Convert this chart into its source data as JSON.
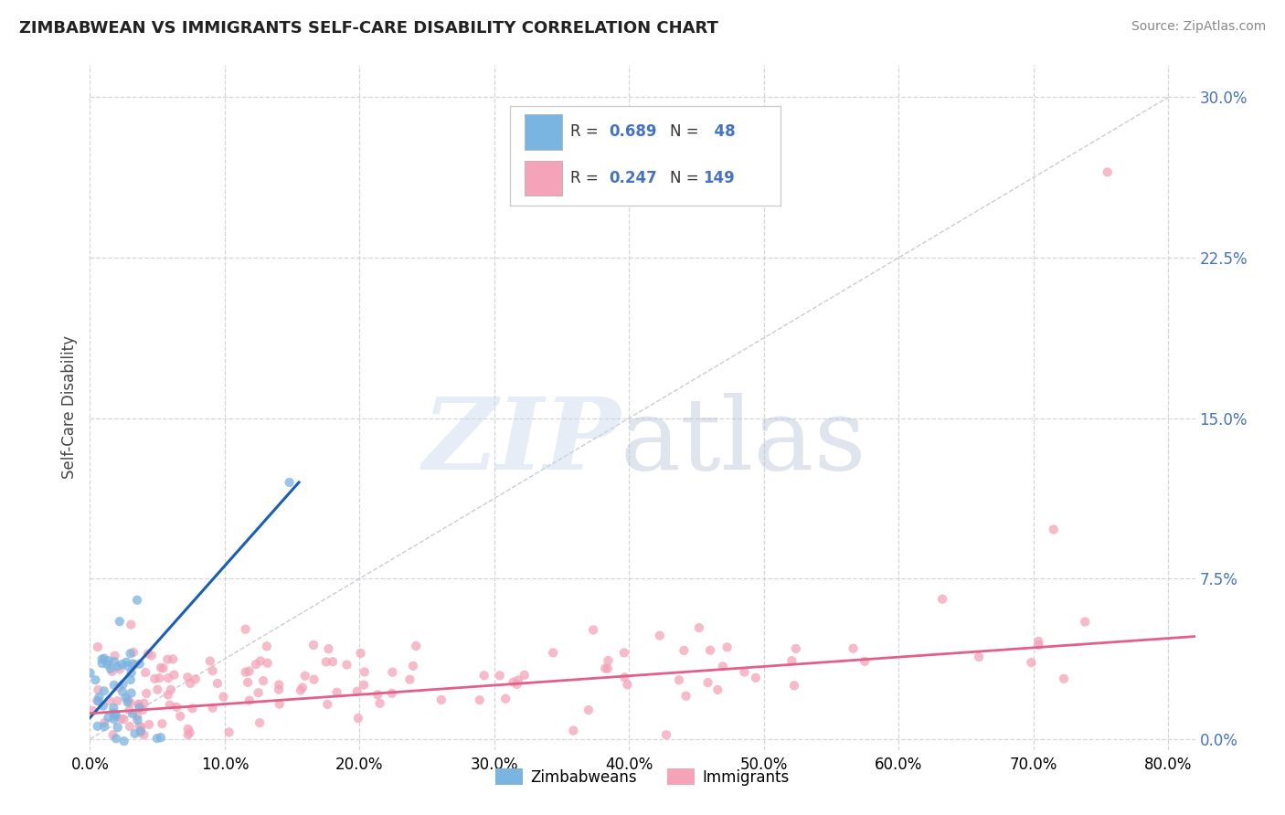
{
  "title": "ZIMBABWEAN VS IMMIGRANTS SELF-CARE DISABILITY CORRELATION CHART",
  "source_text": "Source: ZipAtlas.com",
  "ylabel": "Self-Care Disability",
  "xlim": [
    0.0,
    0.82
  ],
  "ylim": [
    -0.005,
    0.315
  ],
  "zim_color": "#7ab4e0",
  "imm_color": "#f4a3b8",
  "zim_line_color": "#1a5eb8",
  "imm_line_color": "#e0608a",
  "zim_R": 0.689,
  "zim_N": 48,
  "imm_R": 0.247,
  "imm_N": 149,
  "legend_label1": "Zimbabweans",
  "legend_label2": "Immigrants",
  "background_color": "#ffffff",
  "grid_color": "#cccccc",
  "title_color": "#222222",
  "right_tick_color": "#4472c4",
  "x_ticks": [
    0.0,
    0.1,
    0.2,
    0.3,
    0.4,
    0.5,
    0.6,
    0.7,
    0.8
  ],
  "y_ticks": [
    0.0,
    0.075,
    0.15,
    0.225,
    0.3
  ]
}
